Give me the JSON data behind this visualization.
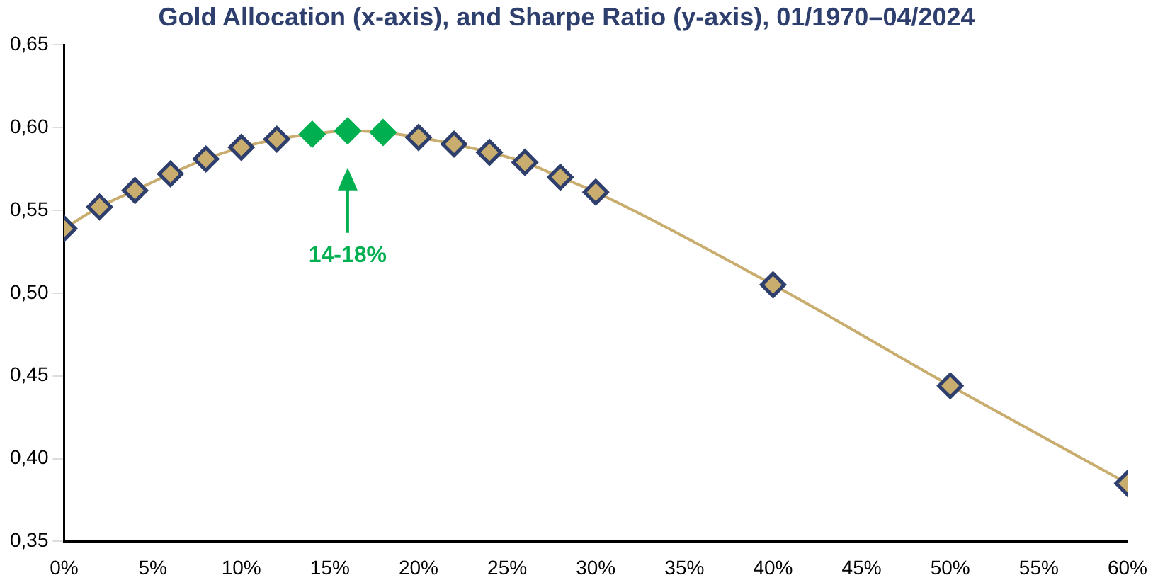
{
  "chart_data": {
    "type": "line",
    "title": "Gold Allocation (x-axis), and Sharpe Ratio (y-axis), 01/1970–04/2024",
    "x": [
      0,
      2,
      4,
      6,
      8,
      10,
      12,
      14,
      16,
      18,
      20,
      22,
      24,
      26,
      28,
      30,
      40,
      50,
      60
    ],
    "series": [
      {
        "color": "#c8ad6e",
        "values": [
          0.539,
          0.552,
          0.562,
          0.572,
          0.581,
          0.588,
          0.593,
          0.596,
          0.598,
          0.597,
          0.594,
          0.59,
          0.585,
          0.579,
          0.57,
          0.561,
          0.505,
          0.444,
          0.385
        ],
        "colors": [
          "#c8ad6e",
          "#c8ad6e",
          "#c8ad6e",
          "#c8ad6e",
          "#c8ad6e",
          "#c8ad6e",
          "#c8ad6e",
          "#00b050",
          "#00b050",
          "#00b050",
          "#c8ad6e",
          "#c8ad6e",
          "#c8ad6e",
          "#c8ad6e",
          "#c8ad6e",
          "#c8ad6e",
          "#c8ad6e",
          "#c8ad6e",
          "#c8ad6e"
        ]
      }
    ],
    "xlim": [
      0,
      60
    ],
    "xticks": [
      {
        "value": 0,
        "label": "0%"
      },
      {
        "value": 5,
        "label": "5%"
      },
      {
        "value": 10,
        "label": "10%"
      },
      {
        "value": 15,
        "label": "15%"
      },
      {
        "value": 20,
        "label": "20%"
      },
      {
        "value": 25,
        "label": "25%"
      },
      {
        "value": 30,
        "label": "30%"
      },
      {
        "value": 35,
        "label": "35%"
      },
      {
        "value": 40,
        "label": "40%"
      },
      {
        "value": 45,
        "label": "45%"
      },
      {
        "value": 50,
        "label": "50%"
      },
      {
        "value": 55,
        "label": "55%"
      },
      {
        "value": 60,
        "label": "60%"
      }
    ],
    "ylim": [
      0.35,
      0.65
    ],
    "yticks": [
      {
        "value": 0.35,
        "label": "0,35"
      },
      {
        "value": 0.4,
        "label": "0,40"
      },
      {
        "value": 0.45,
        "label": "0,45"
      },
      {
        "value": 0.5,
        "label": "0,50"
      },
      {
        "value": 0.55,
        "label": "0,55"
      },
      {
        "value": 0.6,
        "label": "0,60"
      },
      {
        "value": 0.65,
        "label": "0,65"
      }
    ],
    "annotations": [
      "14-18%"
    ],
    "marker": "diamond",
    "grid": false,
    "legend": false
  }
}
